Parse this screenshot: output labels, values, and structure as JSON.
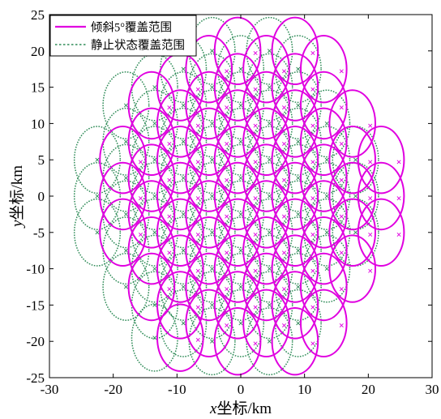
{
  "chart_data": {
    "type": "scatter",
    "xlabel_var": "x",
    "xlabel_rest": "坐标/km",
    "ylabel_var": "y",
    "ylabel_rest": "坐标/km",
    "xlim": [
      -30,
      30
    ],
    "ylim": [
      -25,
      25
    ],
    "xticks": [
      -30,
      -20,
      -10,
      0,
      10,
      20,
      30
    ],
    "yticks": [
      -25,
      -20,
      -15,
      -10,
      -5,
      0,
      5,
      10,
      15,
      20,
      25
    ],
    "grid": false,
    "legend_position": "top-left",
    "series": [
      {
        "name": "倾斜5°覆盖范围",
        "color": "#e000e0",
        "style": "solid",
        "marker": "x",
        "center_offset": [
          2.8,
          -0.3
        ],
        "ellipse_radii": [
          3.6,
          4.6
        ],
        "centers": [
          [
            -18.5,
            5
          ],
          [
            -18.5,
            0
          ],
          [
            -18.5,
            -5
          ],
          [
            -14,
            12.5
          ],
          [
            -14,
            7.5
          ],
          [
            -14,
            2.5
          ],
          [
            -14,
            -2.5
          ],
          [
            -14,
            -7.5
          ],
          [
            -14,
            -12.5
          ],
          [
            -9.5,
            15
          ],
          [
            -9.5,
            10
          ],
          [
            -9.5,
            5
          ],
          [
            -9.5,
            0
          ],
          [
            -9.5,
            -5
          ],
          [
            -9.5,
            -10
          ],
          [
            -9.5,
            -15
          ],
          [
            -9.5,
            -19.5
          ],
          [
            -5,
            17.5
          ],
          [
            -5,
            12.5
          ],
          [
            -5,
            7.5
          ],
          [
            -5,
            2.5
          ],
          [
            -5,
            -2.5
          ],
          [
            -5,
            -7.5
          ],
          [
            -5,
            -12.5
          ],
          [
            -5,
            -17.5
          ],
          [
            -0.5,
            20
          ],
          [
            -0.5,
            15
          ],
          [
            -0.5,
            10
          ],
          [
            -0.5,
            5
          ],
          [
            -0.5,
            0
          ],
          [
            -0.5,
            -5
          ],
          [
            -0.5,
            -10
          ],
          [
            -0.5,
            -15
          ],
          [
            -0.5,
            -20
          ],
          [
            4,
            17.5
          ],
          [
            4,
            12.5
          ],
          [
            4,
            7.5
          ],
          [
            4,
            2.5
          ],
          [
            4,
            -2.5
          ],
          [
            4,
            -7.5
          ],
          [
            4,
            -12.5
          ],
          [
            4,
            -17.5
          ],
          [
            8.5,
            20
          ],
          [
            8.5,
            15
          ],
          [
            8.5,
            10
          ],
          [
            8.5,
            5
          ],
          [
            8.5,
            0
          ],
          [
            8.5,
            -5
          ],
          [
            8.5,
            -10
          ],
          [
            8.5,
            -15
          ],
          [
            8.5,
            -20
          ],
          [
            13,
            17.5
          ],
          [
            13,
            12.5
          ],
          [
            13,
            7.5
          ],
          [
            13,
            2.5
          ],
          [
            13,
            -2.5
          ],
          [
            13,
            -7.5
          ],
          [
            13,
            -12.5
          ],
          [
            13,
            -17.5
          ],
          [
            17.5,
            10
          ],
          [
            17.5,
            5
          ],
          [
            17.5,
            0
          ],
          [
            17.5,
            -5
          ],
          [
            17.5,
            -10
          ],
          [
            22,
            5
          ],
          [
            22,
            0
          ],
          [
            22,
            -5
          ]
        ]
      },
      {
        "name": "静止状态覆盖范围",
        "color": "#2e8b57",
        "style": "dotted",
        "marker": "x",
        "center_offset": [
          0,
          0
        ],
        "ellipse_radii": [
          3.6,
          4.6
        ],
        "centers": [
          [
            -22.5,
            5
          ],
          [
            -22.5,
            0
          ],
          [
            -22.5,
            -5
          ],
          [
            -18,
            12.5
          ],
          [
            -18,
            7.5
          ],
          [
            -18,
            2.5
          ],
          [
            -18,
            -2.5
          ],
          [
            -18,
            -7.5
          ],
          [
            -18,
            -12.5
          ],
          [
            -13.5,
            15
          ],
          [
            -13.5,
            10
          ],
          [
            -13.5,
            5
          ],
          [
            -13.5,
            0
          ],
          [
            -13.5,
            -5
          ],
          [
            -13.5,
            -10
          ],
          [
            -13.5,
            -15
          ],
          [
            -13.5,
            -19.5
          ],
          [
            -9,
            17.5
          ],
          [
            -9,
            12.5
          ],
          [
            -9,
            7.5
          ],
          [
            -9,
            2.5
          ],
          [
            -9,
            -2.5
          ],
          [
            -9,
            -7.5
          ],
          [
            -9,
            -12.5
          ],
          [
            -9,
            -17.5
          ],
          [
            -4.5,
            20
          ],
          [
            -4.5,
            15
          ],
          [
            -4.5,
            10
          ],
          [
            -4.5,
            5
          ],
          [
            -4.5,
            0
          ],
          [
            -4.5,
            -5
          ],
          [
            -4.5,
            -10
          ],
          [
            -4.5,
            -15
          ],
          [
            -4.5,
            -20
          ],
          [
            0,
            17.5
          ],
          [
            0,
            12.5
          ],
          [
            0,
            7.5
          ],
          [
            0,
            2.5
          ],
          [
            0,
            -2.5
          ],
          [
            0,
            -7.5
          ],
          [
            0,
            -12.5
          ],
          [
            0,
            -17.5
          ],
          [
            4.5,
            20
          ],
          [
            4.5,
            15
          ],
          [
            4.5,
            10
          ],
          [
            4.5,
            5
          ],
          [
            4.5,
            0
          ],
          [
            4.5,
            -5
          ],
          [
            4.5,
            -10
          ],
          [
            4.5,
            -15
          ],
          [
            4.5,
            -20
          ],
          [
            9,
            17.5
          ],
          [
            9,
            12.5
          ],
          [
            9,
            7.5
          ],
          [
            9,
            2.5
          ],
          [
            9,
            -2.5
          ],
          [
            9,
            -7.5
          ],
          [
            9,
            -12.5
          ],
          [
            9,
            -17.5
          ],
          [
            13.5,
            10
          ],
          [
            13.5,
            5
          ],
          [
            13.5,
            0
          ],
          [
            13.5,
            -5
          ],
          [
            13.5,
            -10
          ],
          [
            18,
            5
          ],
          [
            18,
            0
          ],
          [
            18,
            -5
          ]
        ]
      }
    ]
  }
}
